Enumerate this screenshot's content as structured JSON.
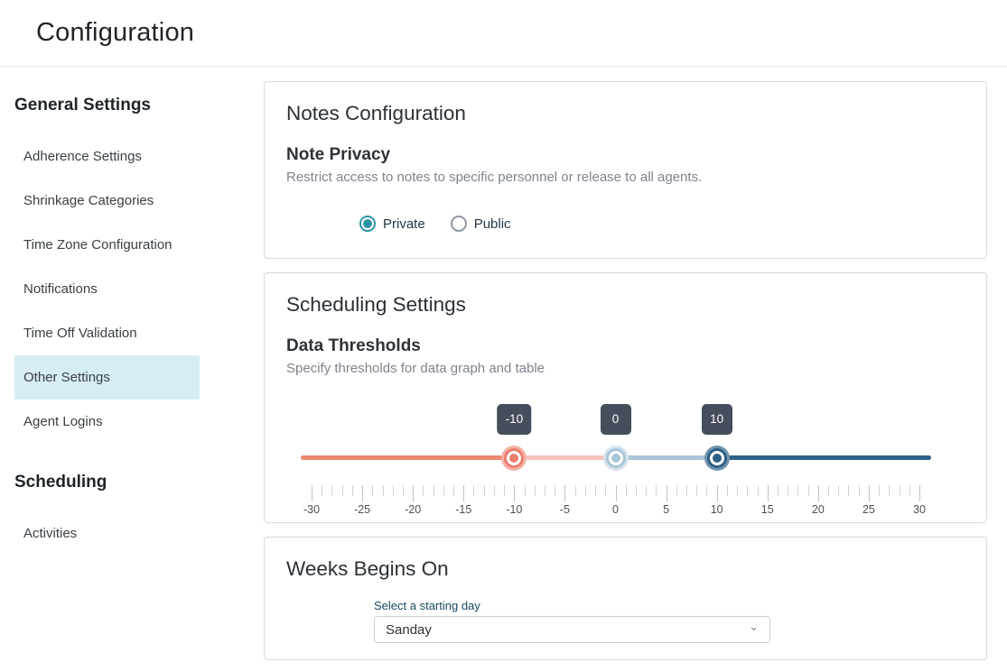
{
  "header": {
    "title": "Configuration"
  },
  "sidebar": {
    "sections": [
      {
        "heading": "General Settings",
        "items": [
          {
            "label": "Adherence Settings",
            "active": false
          },
          {
            "label": "Shrinkage Categories",
            "active": false
          },
          {
            "label": "Time Zone Configuration",
            "active": false
          },
          {
            "label": "Notifications",
            "active": false
          },
          {
            "label": "Time Off Validation",
            "active": false
          },
          {
            "label": "Other Settings",
            "active": true
          },
          {
            "label": "Agent Logins",
            "active": false
          }
        ]
      },
      {
        "heading": "Scheduling",
        "items": [
          {
            "label": "Activities",
            "active": false
          }
        ]
      }
    ]
  },
  "notes_card": {
    "title": "Notes Configuration",
    "section_title": "Note Privacy",
    "description": "Restrict access to notes to specific personnel or release to all agents.",
    "options": [
      {
        "label": "Private",
        "selected": true
      },
      {
        "label": "Public",
        "selected": false
      }
    ]
  },
  "scheduling_card": {
    "title": "Scheduling Settings",
    "section_title": "Data Thresholds",
    "description": "Specify thresholds for data graph and table",
    "slider": {
      "min": -30,
      "max": 30,
      "minor_step": 1,
      "major_step": 5,
      "values": [
        -10,
        0,
        10
      ],
      "tooltip_labels": [
        "-10",
        "0",
        "10"
      ],
      "tick_labels": [
        "-30",
        "-25",
        "-20",
        "-15",
        "-10",
        "-5",
        "0",
        "5",
        "10",
        "15",
        "20",
        "25",
        "30"
      ]
    }
  },
  "weeks_card": {
    "title": "Weeks Begins On",
    "select_label": "Select a starting day",
    "select_value": "Sanday",
    "chevron_icon": "⌄"
  },
  "colors": {
    "accent_teal": "#2b93a8",
    "sidebar_active_bg": "#d6edf4",
    "radio_unselected_border": "#8d95a0",
    "tooltip_bg": "#464d5c",
    "segment_colors": [
      "#ee8473",
      "#f4c3ba",
      "#a9c7d8",
      "#2d6187"
    ],
    "handle_colors": [
      "#ec7e6d",
      "#a9c7d8",
      "#2d6187"
    ],
    "handle_halo_colors": [
      "#f5b2a8",
      "#d6e4ed",
      "#7395ad"
    ],
    "tick_minor": "#d4d4d4",
    "tick_major": "#c3c3c3"
  }
}
